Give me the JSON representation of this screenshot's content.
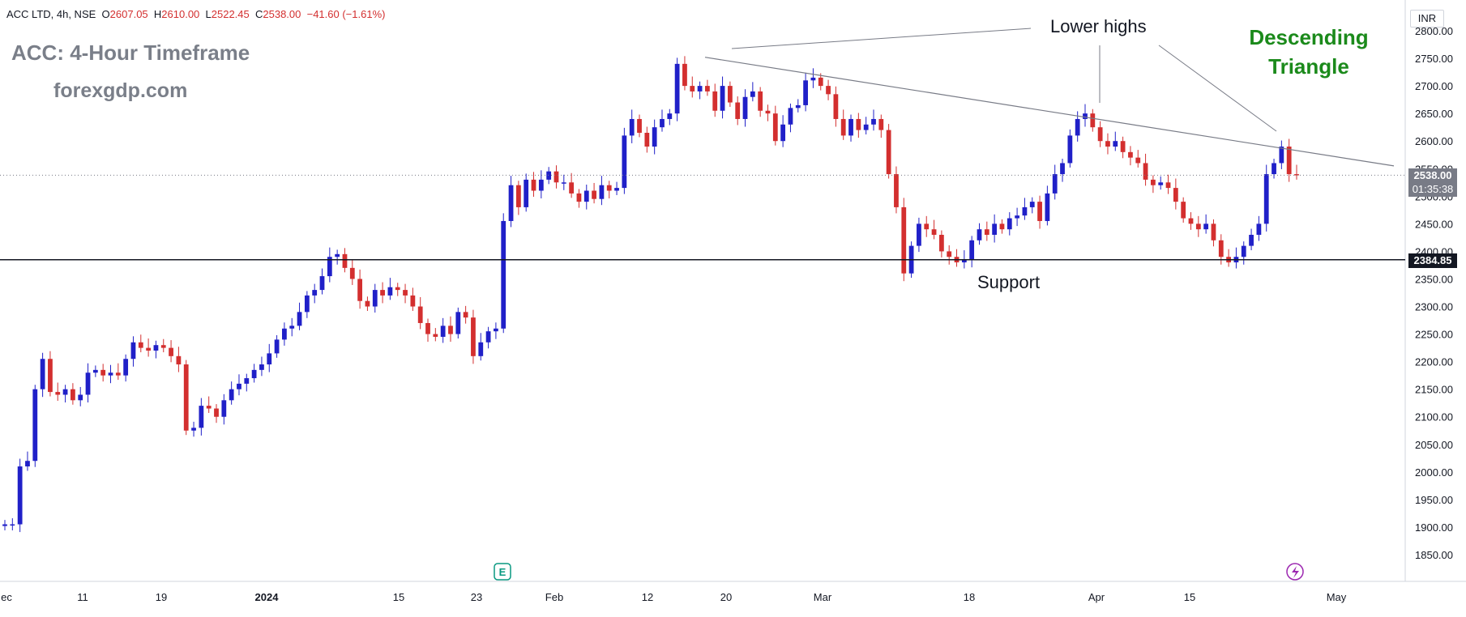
{
  "header": {
    "symbol": "ACC LTD, 4h, NSE",
    "open_label": "O",
    "open": "2607.05",
    "high_label": "H",
    "high": "2610.00",
    "low_label": "L",
    "low": "2522.45",
    "close_label": "C",
    "close": "2538.00",
    "change": "−41.60 (−1.61%)"
  },
  "overlay": {
    "title": "ACC: 4-Hour Timeframe",
    "site": "forexgdp.com",
    "lower_highs": "Lower highs",
    "pattern_line1": "Descending",
    "pattern_line2": "Triangle",
    "support": "Support"
  },
  "price_axis": {
    "currency": "INR",
    "last_price": "2538.00",
    "countdown": "01:35:38",
    "support_price": "2384.85"
  },
  "colors": {
    "up": "#2020c8",
    "down": "#d32f2f",
    "support_line": "#131722",
    "trend_line": "#787b86",
    "pattern_text": "#1b8a1b",
    "last_price_tag": "#787b86",
    "support_tag": "#131722"
  },
  "chart_data": {
    "type": "candlestick",
    "ylim": [
      1800,
      2900
    ],
    "y_ticks": [
      1850,
      1900,
      1950,
      2000,
      2050,
      2100,
      2150,
      2200,
      2250,
      2300,
      2350,
      2400,
      2450,
      2500,
      2550,
      2600,
      2650,
      2700,
      2750,
      2800
    ],
    "x_tick_labels": [
      {
        "label": "ec",
        "bold": false
      },
      {
        "label": "11",
        "bold": false
      },
      {
        "label": "19",
        "bold": false
      },
      {
        "label": "2024",
        "bold": true
      },
      {
        "label": "15",
        "bold": false
      },
      {
        "label": "23",
        "bold": false
      },
      {
        "label": "Feb",
        "bold": false
      },
      {
        "label": "12",
        "bold": false
      },
      {
        "label": "20",
        "bold": false
      },
      {
        "label": "Mar",
        "bold": false
      },
      {
        "label": "18",
        "bold": false
      },
      {
        "label": "Apr",
        "bold": false
      },
      {
        "label": "15",
        "bold": false
      },
      {
        "label": "May",
        "bold": false
      }
    ],
    "support_level": 2384.85,
    "last_close": 2538.0,
    "trendline_points": [
      [
        0,
        2752
      ],
      [
        1,
        2598
      ]
    ],
    "closes": [
      1905,
      1905,
      2010,
      2020,
      2150,
      2205,
      2145,
      2140,
      2150,
      2130,
      2140,
      2180,
      2185,
      2175,
      2180,
      2175,
      2205,
      2235,
      2225,
      2220,
      2230,
      2225,
      2210,
      2195,
      2075,
      2080,
      2120,
      2115,
      2100,
      2130,
      2150,
      2160,
      2170,
      2185,
      2195,
      2215,
      2240,
      2260,
      2265,
      2290,
      2320,
      2330,
      2355,
      2390,
      2395,
      2370,
      2350,
      2310,
      2300,
      2330,
      2320,
      2335,
      2330,
      2320,
      2300,
      2270,
      2250,
      2245,
      2265,
      2250,
      2290,
      2280,
      2210,
      2235,
      2255,
      2260,
      2455,
      2520,
      2480,
      2530,
      2510,
      2530,
      2545,
      2525,
      2525,
      2505,
      2490,
      2510,
      2495,
      2520,
      2510,
      2515,
      2610,
      2640,
      2615,
      2590,
      2625,
      2640,
      2650,
      2740,
      2700,
      2690,
      2700,
      2690,
      2655,
      2700,
      2670,
      2640,
      2680,
      2690,
      2655,
      2650,
      2600,
      2630,
      2660,
      2665,
      2710,
      2715,
      2700,
      2685,
      2640,
      2610,
      2640,
      2620,
      2630,
      2640,
      2620,
      2540,
      2480,
      2360,
      2410,
      2450,
      2440,
      2430,
      2400,
      2390,
      2380,
      2385,
      2420,
      2440,
      2430,
      2450,
      2440,
      2460,
      2465,
      2480,
      2490,
      2455,
      2505,
      2540,
      2560,
      2610,
      2640,
      2650,
      2625,
      2600,
      2590,
      2600,
      2580,
      2570,
      2560,
      2530,
      2520,
      2525,
      2515,
      2490,
      2460,
      2450,
      2440,
      2450,
      2420,
      2390,
      2380,
      2390,
      2410,
      2430,
      2450,
      2540,
      2560,
      2590,
      2540,
      2538
    ]
  }
}
